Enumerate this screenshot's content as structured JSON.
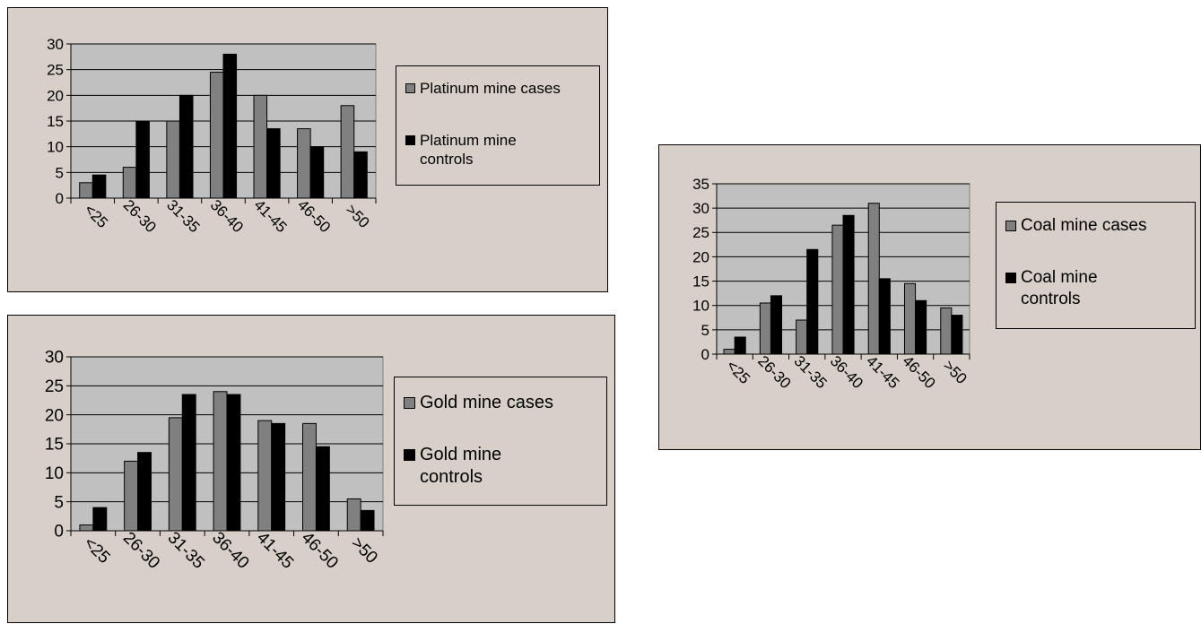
{
  "colors": {
    "cases": "#808080",
    "controls": "#000000",
    "plot_bg": "#c0c0c0",
    "panel_bg": "#d8d0c8"
  },
  "chart_data": [
    {
      "type": "bar",
      "categories": [
        "<25",
        "26-30",
        "31-35",
        "36-40",
        "41-45",
        "46-50",
        ">50"
      ],
      "series": [
        {
          "name": "Platinum mine cases",
          "values": [
            3,
            6,
            15,
            24.5,
            20,
            13.5,
            18
          ]
        },
        {
          "name": "Platinum mine controls",
          "values": [
            4.5,
            15,
            20,
            28,
            13.5,
            10,
            9
          ]
        }
      ],
      "yticks": [
        0,
        5,
        10,
        15,
        20,
        25,
        30
      ],
      "ylim": [
        0,
        30
      ],
      "grid": true,
      "legend": "right"
    },
    {
      "type": "bar",
      "categories": [
        "<25",
        "26-30",
        "31-35",
        "36-40",
        "41-45",
        "46-50",
        ">50"
      ],
      "series": [
        {
          "name": "Gold mine cases",
          "values": [
            1,
            12,
            19.5,
            24,
            19,
            18.5,
            5.5
          ]
        },
        {
          "name": "Gold mine controls",
          "values": [
            4,
            13.5,
            23.5,
            23.5,
            18.5,
            14.5,
            3.5
          ]
        }
      ],
      "yticks": [
        0,
        5,
        10,
        15,
        20,
        25,
        30
      ],
      "ylim": [
        0,
        30
      ],
      "grid": true,
      "legend": "right"
    },
    {
      "type": "bar",
      "categories": [
        "<25",
        "26-30",
        "31-35",
        "36-40",
        "41-45",
        "46-50",
        ">50"
      ],
      "series": [
        {
          "name": "Coal mine cases",
          "values": [
            1,
            10.5,
            7,
            26.5,
            31,
            14.5,
            9.5
          ]
        },
        {
          "name": "Coal mine controls",
          "values": [
            3.5,
            12,
            21.5,
            28.5,
            15.5,
            11,
            8
          ]
        }
      ],
      "yticks": [
        0,
        5,
        10,
        15,
        20,
        25,
        30,
        35
      ],
      "ylim": [
        0,
        35
      ],
      "grid": true,
      "legend": "right"
    }
  ]
}
